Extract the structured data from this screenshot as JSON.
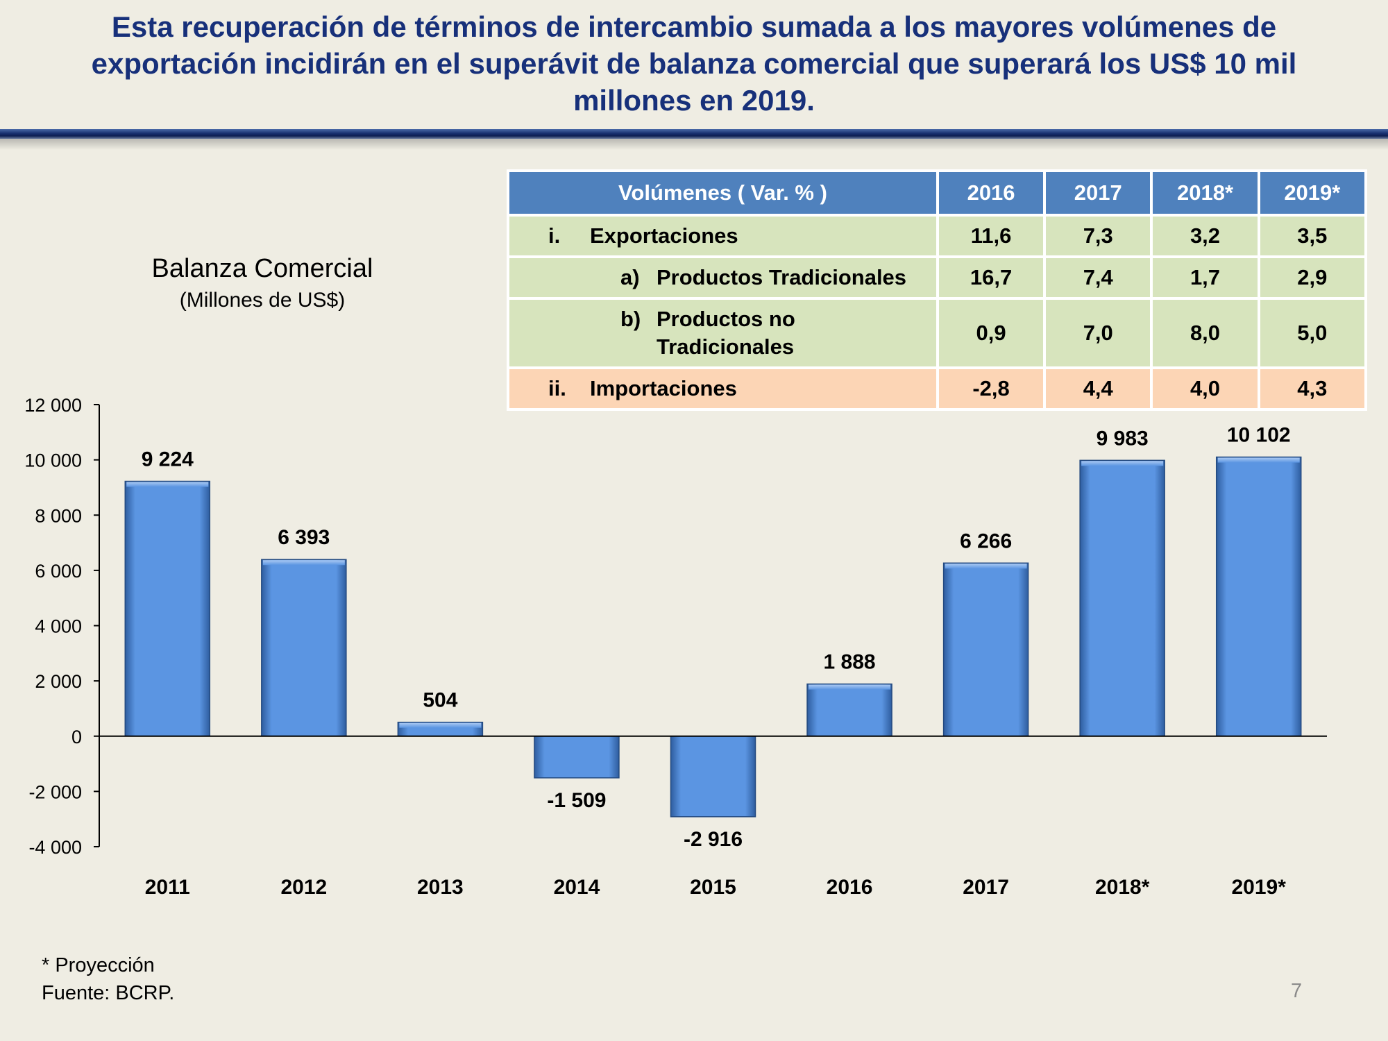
{
  "headline": "Esta recuperación de términos de intercambio sumada a los mayores volúmenes de exportación incidirán en el superávit de balanza comercial que superará los US$ 10 mil millones en 2019.",
  "colors": {
    "bar": "#5b95e2",
    "bar_dark": "#2e5d9f",
    "table_head": "#4f81bd",
    "table_green": "#d7e4bd",
    "table_orange": "#fcd5b5",
    "headline": "#17307a"
  },
  "table": {
    "header_label": "Volúmenes  ( Var. % )",
    "years": [
      "2016",
      "2017",
      "2018*",
      "2019*"
    ],
    "rows": [
      {
        "num": "i.",
        "letter": "",
        "label": "Exportaciones",
        "values": [
          "11,6",
          "7,3",
          "3,2",
          "3,5"
        ]
      },
      {
        "num": "",
        "letter": "a)",
        "label": "Productos Tradicionales",
        "values": [
          "16,7",
          "7,4",
          "1,7",
          "2,9"
        ]
      },
      {
        "num": "",
        "letter": "b)",
        "label": "Productos no Tradicionales",
        "values": [
          "0,9",
          "7,0",
          "8,0",
          "5,0"
        ]
      },
      {
        "num": "ii.",
        "letter": "",
        "label": "Importaciones",
        "values": [
          "-2,8",
          "4,4",
          "4,0",
          "4,3"
        ]
      }
    ]
  },
  "chart_data": {
    "type": "bar",
    "title": "Balanza Comercial",
    "subtitle": "(Millones de US$)",
    "categories": [
      "2011",
      "2012",
      "2013",
      "2014",
      "2015",
      "2016",
      "2017",
      "2018*",
      "2019*"
    ],
    "values": [
      9224,
      6393,
      504,
      -1509,
      -2916,
      1888,
      6266,
      9983,
      10102
    ],
    "data_labels": [
      "9 224",
      "6 393",
      "504",
      "-1 509",
      "-2 916",
      "1 888",
      "6 266",
      "9 983",
      "10 102"
    ],
    "ylim": [
      -4000,
      12000
    ],
    "yticks": [
      12000,
      10000,
      8000,
      6000,
      4000,
      2000,
      0,
      -2000,
      -4000
    ],
    "ytick_labels": [
      "12 000",
      "10 000",
      "8 000",
      "6 000",
      "4 000",
      "2 000",
      "0",
      "-2 000",
      "-4 000"
    ],
    "grid": false,
    "legend": "none"
  },
  "footnote": "* Proyección",
  "source": "Fuente: BCRP.",
  "page_number": "7"
}
